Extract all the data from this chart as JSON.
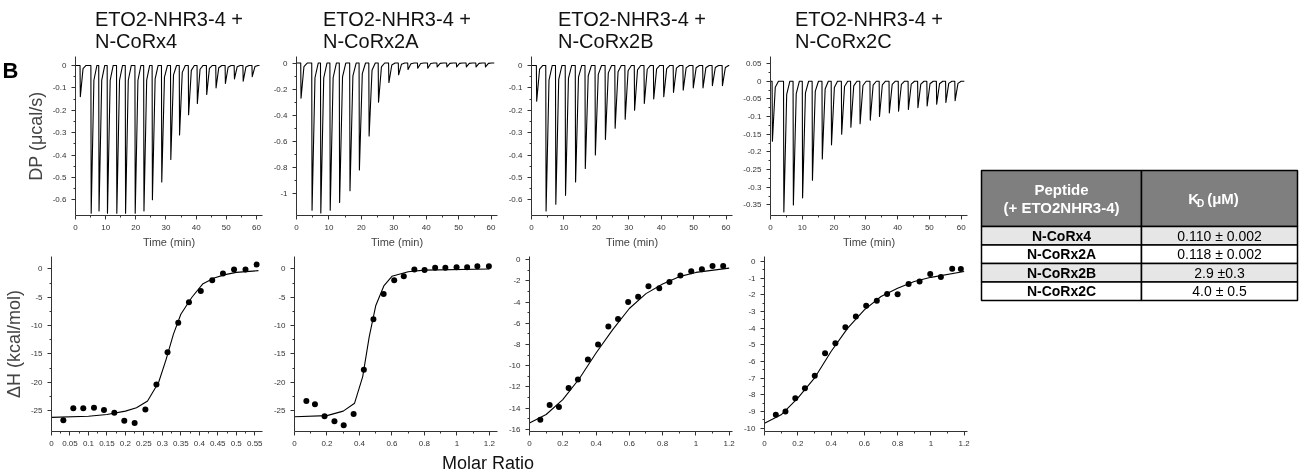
{
  "chart_data": [
    {
      "type": "line",
      "title": "ETO2-NHR3-4 +\nN-CoRx4",
      "xlabel": "Time (min)",
      "ylabel": "DP (μcal/s)",
      "annotations": [
        "B"
      ],
      "xlim": [
        0,
        62
      ],
      "xticks": [
        0,
        10,
        20,
        30,
        40,
        50,
        60
      ],
      "ylim": [
        -0.67,
        0.04
      ],
      "yticks": [
        -0.6,
        -0.5,
        -0.4,
        -0.3,
        -0.2,
        -0.1,
        0
      ],
      "series": [
        {
          "color": "#000000",
          "x": [
            0,
            1.5,
            1.6,
            2.5,
            3.5,
            5.1,
            5.2,
            6.1,
            7.1,
            7.7,
            7.8,
            8.7,
            9.7,
            10.5,
            10.6,
            11.5,
            12.5,
            13.6,
            13.7,
            14.6,
            15.6,
            16.5,
            16.6,
            17.5,
            18.5,
            19.7,
            19.8,
            20.7,
            21.7,
            22.6,
            22.7,
            23.6,
            24.6,
            25.4,
            25.5,
            26.4,
            27.4,
            28.5,
            28.6,
            29.5,
            30.5,
            31.5,
            31.6,
            32.5,
            33.5,
            34.4,
            34.5,
            35.4,
            36.4,
            37.4,
            37.5,
            38.4,
            39.4,
            40.3,
            40.4,
            41.3,
            42.3,
            43.4,
            43.5,
            44.4,
            45.4,
            46.5,
            46.6,
            47.5,
            48.5,
            49.6,
            49.7,
            50.6,
            51.6,
            52.6,
            52.7,
            53.6,
            54.6,
            55.5,
            55.6,
            56.5,
            57.5,
            58.5,
            58.6,
            59.5,
            60.5,
            61
          ],
          "values": [
            0,
            0,
            -0.14,
            -0.014,
            0,
            0,
            -0.66,
            -0.066,
            0,
            0,
            -0.65,
            -0.065,
            0,
            0,
            -0.66,
            -0.066,
            0,
            0,
            -0.66,
            -0.066,
            0,
            0,
            -0.66,
            -0.066,
            0,
            0,
            -0.66,
            -0.066,
            0,
            0,
            -0.65,
            -0.065,
            0,
            0,
            -0.6,
            -0.06,
            0,
            0,
            -0.52,
            -0.052,
            0,
            0,
            -0.42,
            -0.042,
            0,
            0,
            -0.31,
            -0.031,
            0,
            0,
            -0.22,
            -0.022,
            0,
            0,
            -0.17,
            -0.017,
            0,
            0,
            -0.13,
            -0.013,
            0,
            0,
            -0.1,
            -0.01,
            0,
            0,
            -0.08,
            -0.008,
            0,
            0,
            -0.06,
            -0.006,
            0,
            0,
            -0.07,
            -0.007,
            0,
            0,
            -0.05,
            -0.005,
            0,
            0
          ]
        }
      ]
    },
    {
      "type": "line",
      "title": "ETO2-NHR3-4 +\nN-CoRx2A",
      "xlabel": "Time (min)",
      "xlim": [
        0,
        62
      ],
      "xticks": [
        0,
        10,
        20,
        30,
        40,
        50,
        60
      ],
      "ylim": [
        -1.17,
        0.05
      ],
      "yticks": [
        -1,
        -0.8,
        -0.6,
        -0.4,
        -0.2,
        0
      ],
      "series": [
        {
          "color": "#000000",
          "x": [
            0,
            1.3,
            1.4,
            2.3,
            3.3,
            4.7,
            4.8,
            5.7,
            6.7,
            7.4,
            7.5,
            8.4,
            9.4,
            10.3,
            10.4,
            11.3,
            12.3,
            13.2,
            13.3,
            14.2,
            15.2,
            16.4,
            16.5,
            17.4,
            18.4,
            19.3,
            19.4,
            20.3,
            21.3,
            22.3,
            22.4,
            23.3,
            24.3,
            25.2,
            25.3,
            26.2,
            27.2,
            28.4,
            28.5,
            29.4,
            30.4,
            31.4,
            31.5,
            32.4,
            33.4,
            34.3,
            34.4,
            35.3,
            36.3,
            37.3,
            37.4,
            38.3,
            39.3,
            40.4,
            40.5,
            41.4,
            42.4,
            43.3,
            43.4,
            44.3,
            45.3,
            46.3,
            46.4,
            47.3,
            48.3,
            49.3,
            49.4,
            50.3,
            51.3,
            52.3,
            52.4,
            53.3,
            54.3,
            55.3,
            55.4,
            56.3,
            57.3,
            58.2,
            58.3,
            59.2,
            60.2,
            61
          ],
          "values": [
            0,
            0,
            -0.27,
            -0.027,
            0,
            0,
            -1.13,
            -0.113,
            0,
            0,
            -1.15,
            -0.115,
            0,
            0,
            -1.13,
            -0.113,
            0,
            0,
            -1.07,
            -0.107,
            0,
            0,
            -0.98,
            -0.098,
            0,
            0,
            -0.82,
            -0.082,
            0,
            0,
            -0.56,
            -0.056,
            0,
            0,
            -0.3,
            -0.03,
            0,
            0,
            -0.15,
            -0.015,
            0,
            0,
            -0.09,
            -0.009,
            0,
            0,
            -0.05,
            -0.005,
            0,
            0,
            -0.04,
            -0.004,
            0,
            0,
            -0.04,
            -0.004,
            0,
            0,
            -0.03,
            -0.003,
            0,
            0,
            -0.03,
            -0.003,
            0,
            0,
            -0.03,
            -0.003,
            0,
            0,
            -0.03,
            -0.003,
            0,
            0,
            -0.03,
            -0.003,
            0,
            0,
            -0.03,
            -0.003,
            0,
            0
          ]
        }
      ]
    },
    {
      "type": "line",
      "title": "ETO2-NHR3-4 +\nN-CoRx2B",
      "xlabel": "Time (min)",
      "xlim": [
        0,
        62
      ],
      "xticks": [
        0,
        10,
        20,
        30,
        40,
        50,
        60
      ],
      "ylim": [
        -0.67,
        0.04
      ],
      "yticks": [
        -0.6,
        -0.5,
        -0.4,
        -0.3,
        -0.2,
        -0.1,
        0
      ],
      "series": [
        {
          "color": "#000000",
          "x": [
            0,
            1.5,
            1.6,
            2.5,
            3.5,
            4.4,
            4.5,
            5.4,
            6.4,
            7.4,
            7.5,
            8.4,
            9.4,
            10.4,
            10.5,
            11.4,
            12.4,
            13.5,
            13.6,
            14.5,
            15.5,
            16.5,
            16.6,
            17.5,
            18.5,
            19.6,
            19.7,
            20.6,
            21.6,
            22.7,
            22.8,
            23.7,
            24.7,
            25.7,
            25.8,
            26.7,
            27.7,
            28.8,
            28.9,
            29.8,
            30.8,
            31.7,
            31.8,
            32.7,
            33.7,
            34.7,
            34.8,
            35.7,
            36.7,
            37.6,
            37.7,
            38.6,
            39.6,
            40.7,
            40.8,
            41.7,
            42.7,
            43.7,
            43.8,
            44.7,
            45.7,
            46.7,
            46.8,
            47.7,
            48.7,
            49.8,
            49.9,
            50.8,
            51.8,
            52.8,
            52.9,
            53.8,
            54.8,
            55.7,
            55.8,
            56.7,
            57.7,
            58.8,
            58.9,
            59.8,
            60.8,
            61
          ],
          "values": [
            0,
            0,
            -0.16,
            -0.016,
            0,
            0,
            -0.65,
            -0.065,
            0,
            0,
            -0.62,
            -0.062,
            0,
            0,
            -0.58,
            -0.058,
            0,
            0,
            -0.52,
            -0.052,
            0,
            0,
            -0.46,
            -0.046,
            0,
            0,
            -0.4,
            -0.04,
            0,
            0,
            -0.33,
            -0.033,
            0,
            0,
            -0.28,
            -0.028,
            0,
            0,
            -0.24,
            -0.024,
            0,
            0,
            -0.2,
            -0.02,
            0,
            0,
            -0.17,
            -0.017,
            0,
            0,
            -0.15,
            -0.015,
            0,
            0,
            -0.14,
            -0.014,
            0,
            0,
            -0.12,
            -0.012,
            0,
            0,
            -0.11,
            -0.011,
            0,
            0,
            -0.1,
            -0.01,
            0,
            0,
            -0.1,
            -0.01,
            0,
            0,
            -0.09,
            -0.009,
            0,
            0,
            -0.09,
            -0.009,
            0,
            0
          ]
        }
      ]
    },
    {
      "type": "line",
      "title": "ETO2-NHR3-4 +\nN-CoRx2C",
      "xlabel": "Time (min)",
      "xlim": [
        0,
        62
      ],
      "xticks": [
        0,
        10,
        20,
        30,
        40,
        50,
        60
      ],
      "ylim": [
        -0.38,
        0.07
      ],
      "yticks": [
        -0.35,
        -0.3,
        -0.25,
        -0.2,
        -0.15,
        -0.1,
        -0.05,
        0,
        0.05
      ],
      "series": [
        {
          "color": "#000000",
          "x": [
            0,
            0.5,
            0.6,
            1.5,
            2.5,
            4.1,
            4.2,
            5.1,
            6.1,
            7.1,
            7.2,
            8.1,
            9.1,
            10,
            10.1,
            11,
            12,
            13.1,
            13.2,
            14.1,
            15.1,
            16.2,
            16.3,
            17.2,
            18.2,
            19.1,
            19.2,
            20.1,
            21.1,
            22.3,
            22.4,
            23.3,
            24.3,
            25.2,
            25.3,
            26.2,
            27.2,
            28.1,
            28.2,
            29.1,
            30.1,
            31.3,
            31.4,
            32.3,
            33.3,
            34.2,
            34.3,
            35.2,
            36.2,
            37.3,
            37.4,
            38.3,
            39.3,
            40.2,
            40.3,
            41.2,
            42.2,
            43.3,
            43.4,
            44.3,
            45.3,
            46.3,
            46.4,
            47.3,
            48.3,
            49.2,
            49.3,
            50.2,
            51.2,
            52.2,
            52.3,
            53.2,
            54.2,
            55.1,
            55.2,
            56.1,
            57.1,
            58,
            58.1,
            59,
            60,
            61
          ],
          "values": [
            0,
            0,
            -0.17,
            -0.017,
            0,
            0,
            -0.37,
            -0.037,
            0,
            0,
            -0.35,
            -0.035,
            0,
            0,
            -0.33,
            -0.033,
            0,
            0,
            -0.28,
            -0.028,
            0,
            0,
            -0.22,
            -0.022,
            0,
            0,
            -0.18,
            -0.018,
            0,
            0,
            -0.15,
            -0.015,
            0,
            0,
            -0.13,
            -0.013,
            0,
            0,
            -0.12,
            -0.012,
            0,
            0,
            -0.11,
            -0.011,
            0,
            0,
            -0.1,
            -0.01,
            0,
            0,
            -0.09,
            -0.009,
            0,
            0,
            -0.085,
            -0.009,
            0,
            0,
            -0.08,
            -0.008,
            0,
            0,
            -0.075,
            -0.008,
            0,
            0,
            -0.07,
            -0.007,
            0,
            0,
            -0.065,
            -0.007,
            0,
            0,
            -0.06,
            -0.006,
            0,
            0,
            -0.055,
            -0.006,
            0,
            0
          ]
        }
      ]
    },
    {
      "type": "scatter",
      "ylabel": "ΔH (kcal/mol)",
      "xlim": [
        0,
        0.571
      ],
      "xticks": [
        0,
        0.05,
        0.1,
        0.15,
        0.2,
        0.25,
        0.3,
        0.35,
        0.4,
        0.45,
        0.5,
        0.55
      ],
      "ylim": [
        -28.7,
        2.2
      ],
      "yticks": [
        -25,
        -20,
        -15,
        -10,
        -5,
        0
      ],
      "series": [
        {
          "type": "scatter",
          "marker": "circle",
          "color": "#000000",
          "x": [
            0.032,
            0.059,
            0.086,
            0.115,
            0.142,
            0.17,
            0.197,
            0.225,
            0.254,
            0.284,
            0.314,
            0.343,
            0.372,
            0.404,
            0.435,
            0.464,
            0.494,
            0.525,
            0.555
          ],
          "values": [
            -26.7,
            -24.6,
            -24.6,
            -24.5,
            -24.9,
            -25.4,
            -26.8,
            -27.2,
            -24.8,
            -20.4,
            -14.7,
            -9.5,
            -5.9,
            -3.9,
            -2.0,
            -0.8,
            -0.1,
            -0.1,
            0.8
          ]
        },
        {
          "type": "line",
          "color": "#000000",
          "x": [
            0,
            0.1,
            0.15,
            0.2,
            0.23,
            0.26,
            0.29,
            0.31,
            0.33,
            0.35,
            0.38,
            0.41,
            0.44,
            0.47,
            0.5,
            0.56
          ],
          "values": [
            -26.2,
            -26.0,
            -25.7,
            -25.1,
            -24.5,
            -23.3,
            -20,
            -16,
            -11.5,
            -8,
            -5,
            -2.6,
            -1.6,
            -1.0,
            -0.6,
            -0.3
          ]
        }
      ]
    },
    {
      "type": "scatter",
      "xlabel": "Molar Ratio",
      "xlim": [
        0,
        1.25
      ],
      "xticks": [
        0,
        0.2,
        0.4,
        0.6,
        0.8,
        1,
        1.2
      ],
      "ylim": [
        -28.7,
        2.2
      ],
      "yticks": [
        -25,
        -20,
        -15,
        -10,
        -5,
        0
      ],
      "series": [
        {
          "type": "scatter",
          "marker": "circle",
          "color": "#000000",
          "x": [
            0.073,
            0.126,
            0.185,
            0.246,
            0.303,
            0.364,
            0.427,
            0.486,
            0.549,
            0.614,
            0.673,
            0.738,
            0.801,
            0.866,
            0.929,
            0.998,
            1.063,
            1.126,
            1.197
          ],
          "values": [
            -23.3,
            -23.9,
            -26,
            -26.9,
            -27.6,
            -25.6,
            -17.8,
            -8.9,
            -4.4,
            -2,
            -1.3,
            -0.1,
            -0.2,
            0.2,
            0.2,
            0.3,
            0.3,
            0.5,
            0.5
          ]
        },
        {
          "type": "line",
          "color": "#000000",
          "x": [
            0,
            0.2,
            0.3,
            0.37,
            0.42,
            0.46,
            0.5,
            0.55,
            0.6,
            0.7,
            0.8,
            1.2
          ],
          "values": [
            -26.1,
            -25.9,
            -25.1,
            -23.7,
            -19,
            -12,
            -6.5,
            -3,
            -1.3,
            -0.5,
            -0.2,
            0
          ]
        }
      ]
    },
    {
      "type": "scatter",
      "xlim": [
        0,
        1.22
      ],
      "xticks": [
        0,
        0.2,
        0.4,
        0.6,
        0.8,
        1,
        1.2
      ],
      "ylim": [
        -16.2,
        0.3
      ],
      "yticks": [
        -16,
        -14,
        -12,
        -10,
        -8,
        -6,
        -4,
        -2,
        0
      ],
      "series": [
        {
          "type": "scatter",
          "marker": "circle",
          "color": "#000000",
          "x": [
            0.065,
            0.121,
            0.177,
            0.235,
            0.291,
            0.351,
            0.412,
            0.474,
            0.532,
            0.593,
            0.653,
            0.715,
            0.78,
            0.841,
            0.907,
            0.972,
            1.036,
            1.1,
            1.164
          ],
          "values": [
            -15.1,
            -13.7,
            -13.9,
            -12.1,
            -11.3,
            -9.4,
            -8.0,
            -6.3,
            -5.6,
            -4.0,
            -3.5,
            -2.5,
            -2.7,
            -2.1,
            -1.5,
            -1.1,
            -0.9,
            -0.6,
            -0.6
          ]
        },
        {
          "type": "line",
          "color": "#000000",
          "x": [
            0,
            0.1,
            0.2,
            0.3,
            0.4,
            0.5,
            0.6,
            0.7,
            0.8,
            0.9,
            1.0,
            1.2
          ],
          "values": [
            -15.4,
            -14.6,
            -13.2,
            -11.2,
            -8.8,
            -6.6,
            -4.6,
            -3.2,
            -2.3,
            -1.6,
            -1.2,
            -0.8
          ]
        }
      ]
    },
    {
      "type": "scatter",
      "xlim": [
        0,
        1.22
      ],
      "xticks": [
        0,
        0.2,
        0.4,
        0.6,
        0.8,
        1,
        1.2
      ],
      "ylim": [
        -10.2,
        0.3
      ],
      "yticks": [
        -10,
        -9,
        -8,
        -7,
        -6,
        -5,
        -4,
        -3,
        -2,
        -1,
        0
      ],
      "series": [
        {
          "type": "scatter",
          "marker": "circle",
          "color": "#000000",
          "x": [
            0.068,
            0.126,
            0.185,
            0.243,
            0.302,
            0.364,
            0.426,
            0.486,
            0.549,
            0.611,
            0.675,
            0.737,
            0.8,
            0.866,
            0.932,
            0.996,
            1.06,
            1.128,
            1.18
          ],
          "values": [
            -9.2,
            -9.0,
            -8.2,
            -7.6,
            -6.85,
            -5.5,
            -4.9,
            -3.95,
            -3.3,
            -2.65,
            -2.35,
            -1.95,
            -1.97,
            -1.35,
            -1.2,
            -0.75,
            -0.93,
            -0.43,
            -0.45
          ]
        },
        {
          "type": "line",
          "color": "#000000",
          "x": [
            0,
            0.1,
            0.2,
            0.3,
            0.4,
            0.5,
            0.6,
            0.7,
            0.8,
            0.9,
            1.0,
            1.2
          ],
          "values": [
            -9.7,
            -9.2,
            -8.2,
            -7.0,
            -5.4,
            -4.0,
            -2.9,
            -2.1,
            -1.6,
            -1.2,
            -0.95,
            -0.6
          ]
        }
      ]
    },
    {
      "type": "other",
      "annotations": [
        "Peptide\n(+ ETO2NHR3-4)",
        "K$_{D}$ (μM)",
        "N-CoRx4",
        "0.110 ± 0.002",
        "N-CoRx2A",
        "0.118 ± 0.002",
        "N-CoRx2B",
        "2.9 ±0.3",
        "N-CoRx2C",
        "4.0 ± 0.5"
      ]
    }
  ]
}
